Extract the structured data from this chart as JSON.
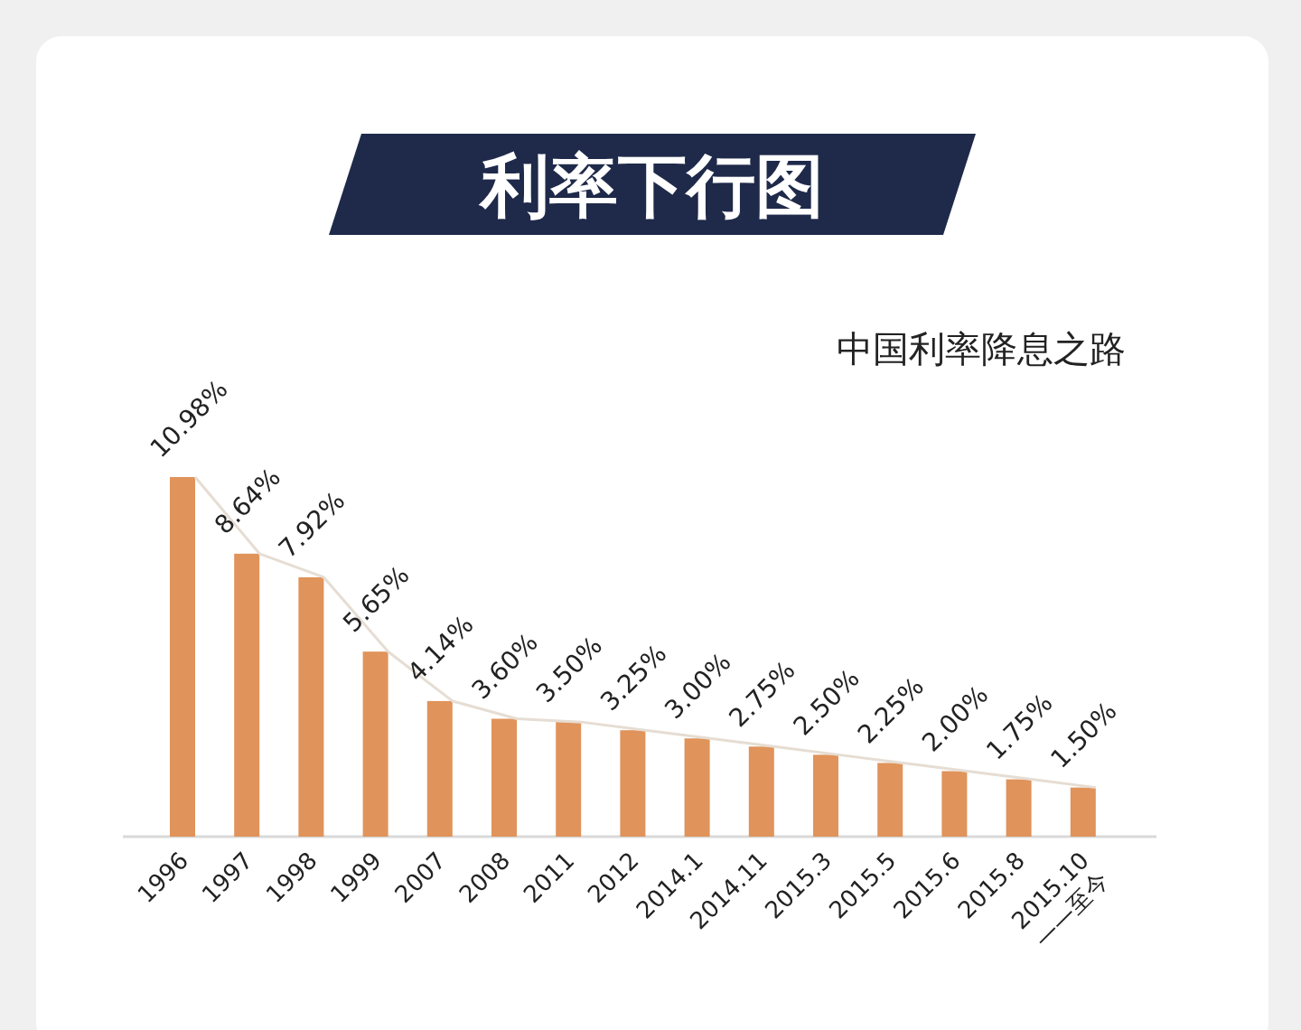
{
  "chart_data": {
    "type": "bar",
    "title": "利率下行图",
    "subtitle": "中国利率降息之路",
    "categories": [
      "1996",
      "1997",
      "1998",
      "1999",
      "2007",
      "2008",
      "2011",
      "2012",
      "2014.1",
      "2014.11",
      "2015.3",
      "2015.5",
      "2015.6",
      "2015.8",
      "2015.10\n——至今"
    ],
    "series": [
      {
        "color": "#e0935a",
        "values": [
          10.98,
          8.64,
          7.92,
          5.65,
          4.14,
          3.6,
          3.5,
          3.25,
          3.0,
          2.75,
          2.5,
          2.25,
          2.0,
          1.75,
          1.5
        ],
        "value_labels": [
          "10.98%",
          "8.64%",
          "7.92%",
          "5.65%",
          "4.14%",
          "3.60%",
          "3.50%",
          "3.25%",
          "3.00%",
          "2.75%",
          "2.50%",
          "2.25%",
          "2.00%",
          "1.75%",
          "1.50%"
        ]
      },
      {
        "type": "line",
        "color": "#e6ddd3",
        "values": [
          10.98,
          8.64,
          7.92,
          5.65,
          4.14,
          3.6,
          3.5,
          3.25,
          3.0,
          2.75,
          2.5,
          2.25,
          2.0,
          1.75,
          1.5
        ]
      }
    ]
  }
}
